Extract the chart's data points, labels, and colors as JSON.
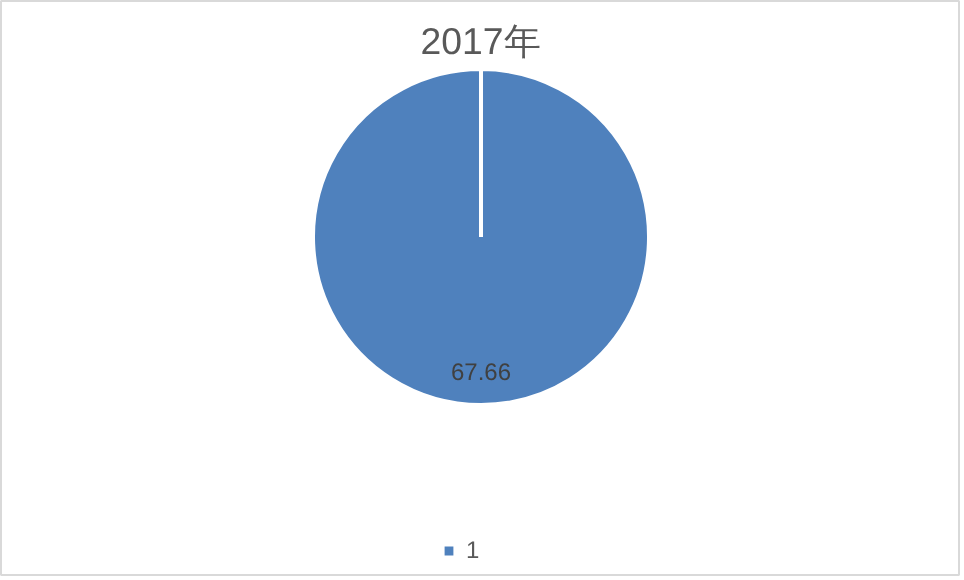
{
  "chart_data": {
    "type": "pie",
    "title": "2017年",
    "categories": [
      "1"
    ],
    "values": [
      67.66
    ],
    "colors": [
      "#4f81bd"
    ],
    "data_labels": true,
    "legend": "bottom"
  }
}
